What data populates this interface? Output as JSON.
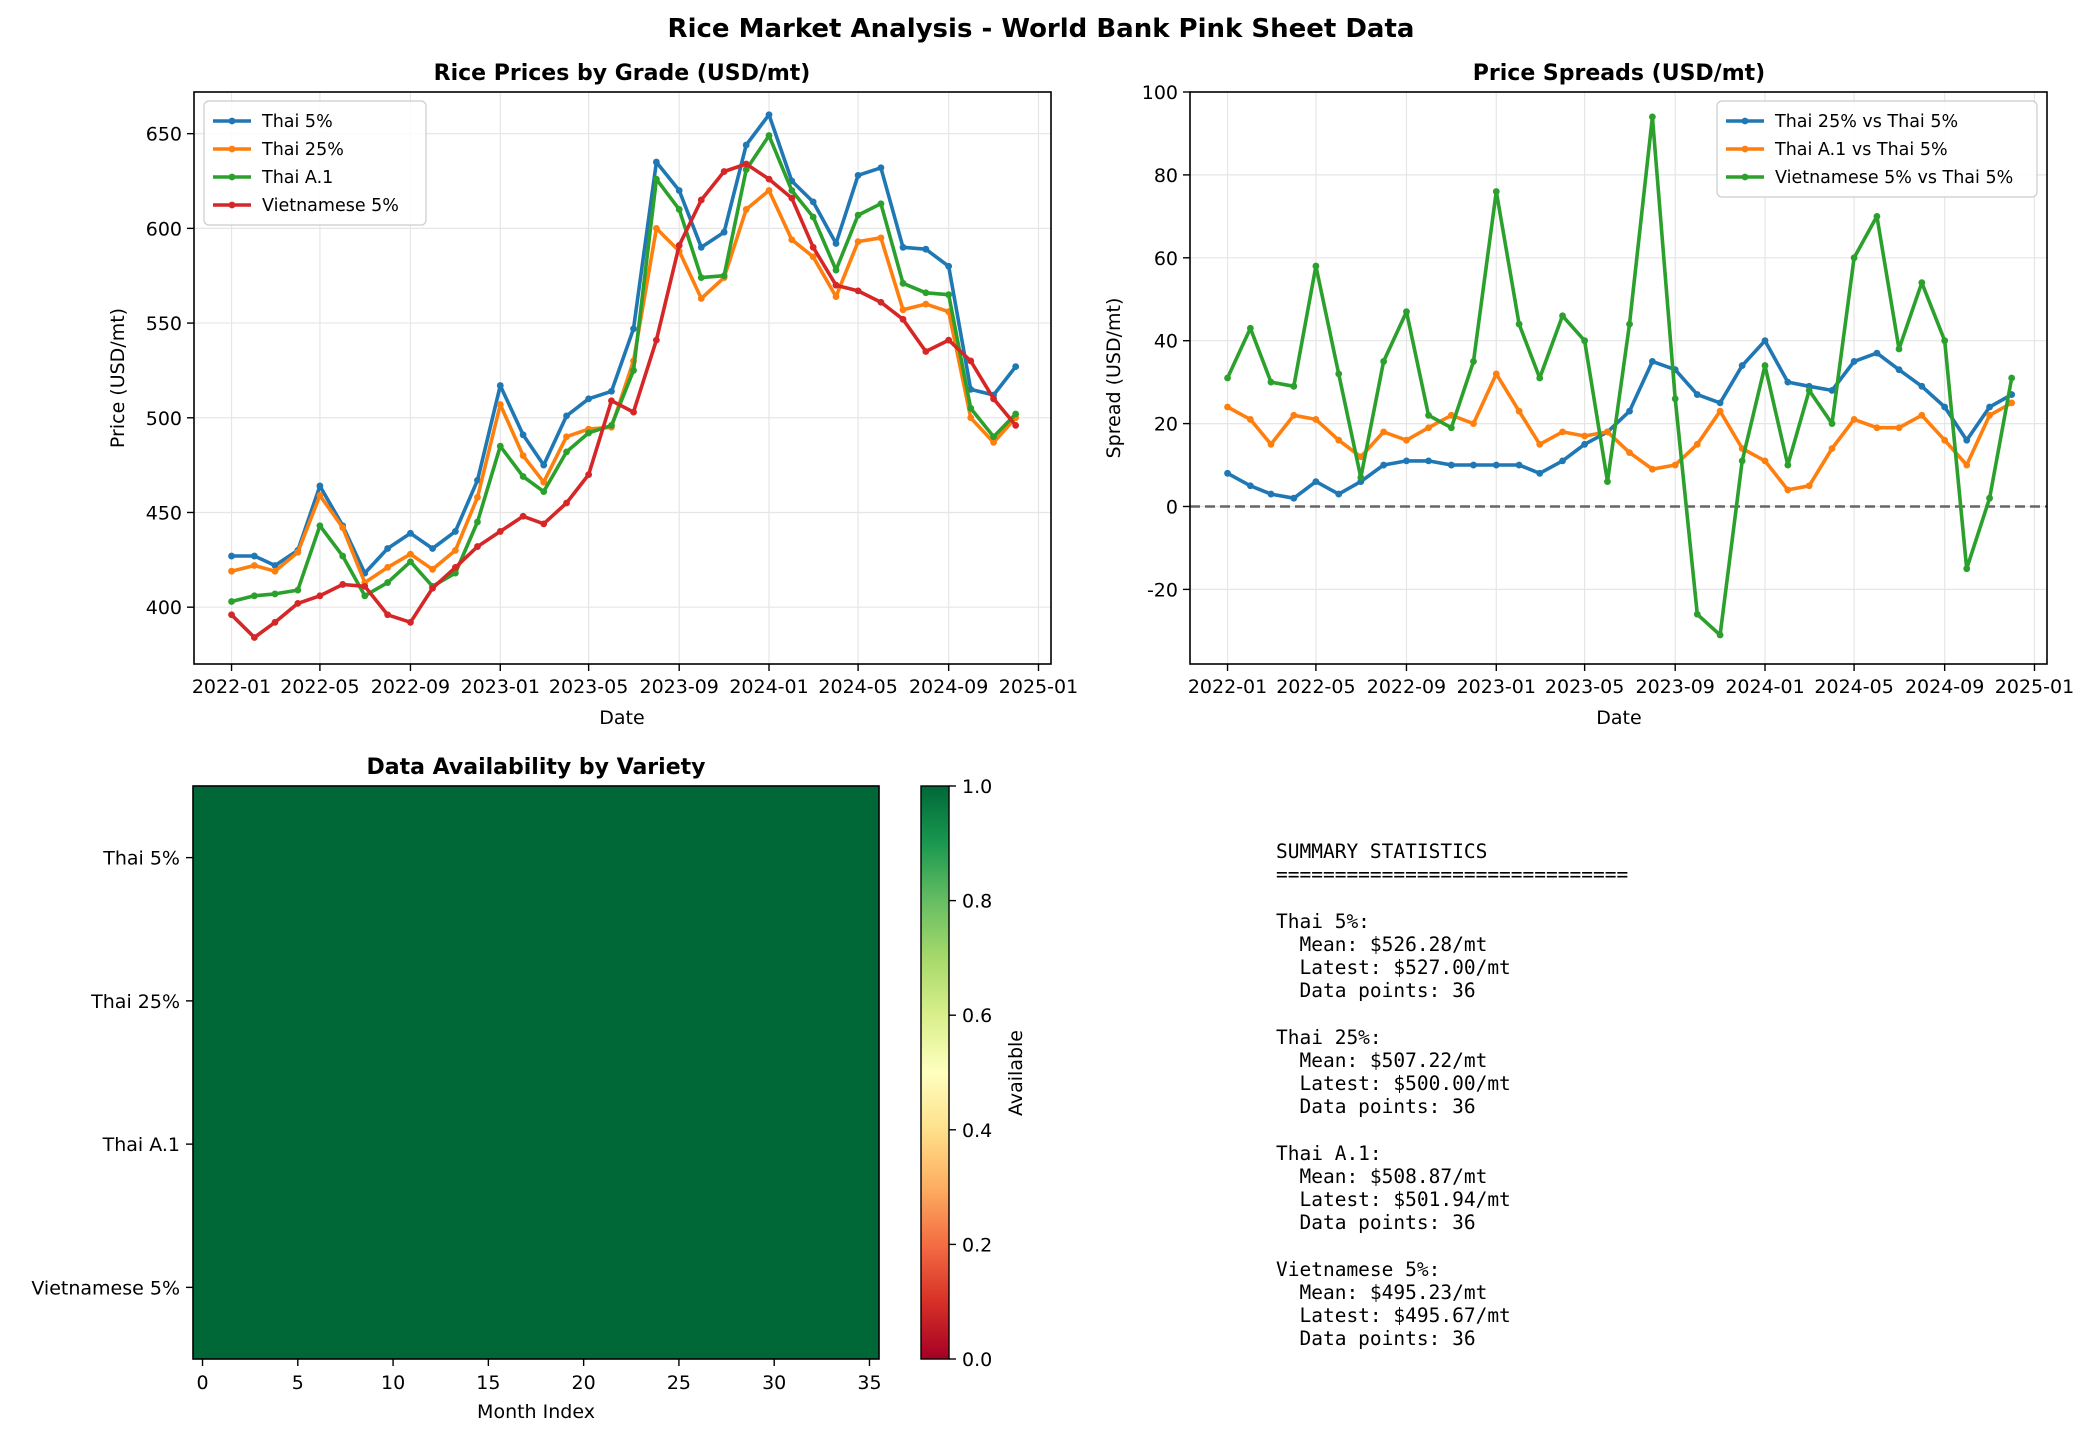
{
  "suptitle": "Rice Market Analysis - World Bank Pink Sheet Data",
  "colors": {
    "blue": "#1f77b4",
    "orange": "#ff7f0e",
    "green": "#2ca02c",
    "red": "#d62728",
    "grid": "#e6e6e6",
    "zero_line": "#666666",
    "heatmap_fill": "#006837"
  },
  "chart_data": [
    {
      "type": "line",
      "title": "Rice Prices by Grade (USD/mt)",
      "xlabel": "Date",
      "ylabel": "Price (USD/mt)",
      "grid": true,
      "legend_position": "top-left",
      "xlim": [
        "2021-11-11",
        "2025-01-18"
      ],
      "ylim": [
        370,
        672
      ],
      "x_ticks": [
        "2022-01",
        "2022-05",
        "2022-09",
        "2023-01",
        "2023-05",
        "2023-09",
        "2024-01",
        "2024-05",
        "2024-09",
        "2025-01"
      ],
      "y_ticks": [
        400,
        450,
        500,
        550,
        600,
        650
      ],
      "x": [
        "2022-01-01",
        "2022-02-01",
        "2022-03-01",
        "2022-04-01",
        "2022-05-01",
        "2022-06-01",
        "2022-07-01",
        "2022-08-01",
        "2022-09-01",
        "2022-10-01",
        "2022-11-01",
        "2022-12-01",
        "2023-01-01",
        "2023-02-01",
        "2023-03-01",
        "2023-04-01",
        "2023-05-01",
        "2023-06-01",
        "2023-07-01",
        "2023-08-01",
        "2023-09-01",
        "2023-10-01",
        "2023-11-01",
        "2023-12-01",
        "2024-01-01",
        "2024-02-01",
        "2024-03-01",
        "2024-04-01",
        "2024-05-01",
        "2024-06-01",
        "2024-07-01",
        "2024-08-01",
        "2024-09-01",
        "2024-10-01",
        "2024-11-01",
        "2024-12-01"
      ],
      "series": [
        {
          "name": "Thai 5%",
          "color": "blue",
          "values": [
            427,
            427,
            422,
            430,
            464,
            443,
            418,
            431,
            439,
            431,
            440,
            467,
            517,
            491,
            475,
            501,
            510,
            514,
            547,
            635,
            620,
            590,
            598,
            644,
            660,
            625,
            614,
            592,
            628,
            632,
            590,
            589,
            580,
            515,
            512,
            527
          ]
        },
        {
          "name": "Thai 25%",
          "color": "orange",
          "values": [
            419,
            422,
            419,
            429,
            459,
            442,
            413,
            421,
            428,
            420,
            430,
            458,
            507,
            480,
            466,
            490,
            494,
            495,
            530,
            600,
            588,
            563,
            574,
            610,
            620,
            594,
            585,
            564,
            593,
            595,
            557,
            560,
            556,
            500,
            487,
            500
          ]
        },
        {
          "name": "Thai A.1",
          "color": "green",
          "values": [
            403,
            406,
            407,
            409,
            443,
            427,
            406,
            413,
            424,
            411,
            418,
            445,
            485,
            469,
            461,
            482,
            492,
            496,
            525,
            626,
            610,
            574,
            575,
            631,
            649,
            620,
            606,
            578,
            607,
            613,
            571,
            566,
            565,
            505,
            490,
            502
          ]
        },
        {
          "name": "Vietnamese 5%",
          "color": "red",
          "values": [
            396,
            384,
            392,
            402,
            406,
            412,
            411,
            396,
            392,
            410,
            421,
            432,
            440,
            448,
            444,
            455,
            470,
            509,
            503,
            541,
            591,
            615,
            630,
            634,
            626,
            616,
            590,
            570,
            567,
            561,
            552,
            535,
            541,
            530,
            510,
            496
          ]
        }
      ]
    },
    {
      "type": "line",
      "title": "Price Spreads (USD/mt)",
      "xlabel": "Date",
      "ylabel": "Spread (USD/mt)",
      "grid": true,
      "legend_position": "top-right",
      "xlim": [
        "2021-11-11",
        "2025-01-18"
      ],
      "ylim": [
        -38,
        100
      ],
      "x_ticks": [
        "2022-01",
        "2022-05",
        "2022-09",
        "2023-01",
        "2023-05",
        "2023-09",
        "2024-01",
        "2024-05",
        "2024-09",
        "2025-01"
      ],
      "y_ticks": [
        -20,
        0,
        20,
        40,
        60,
        80,
        100
      ],
      "reference_line_y": 0,
      "x": [
        "2022-01-01",
        "2022-02-01",
        "2022-03-01",
        "2022-04-01",
        "2022-05-01",
        "2022-06-01",
        "2022-07-01",
        "2022-08-01",
        "2022-09-01",
        "2022-10-01",
        "2022-11-01",
        "2022-12-01",
        "2023-01-01",
        "2023-02-01",
        "2023-03-01",
        "2023-04-01",
        "2023-05-01",
        "2023-06-01",
        "2023-07-01",
        "2023-08-01",
        "2023-09-01",
        "2023-10-01",
        "2023-11-01",
        "2023-12-01",
        "2024-01-01",
        "2024-02-01",
        "2024-03-01",
        "2024-04-01",
        "2024-05-01",
        "2024-06-01",
        "2024-07-01",
        "2024-08-01",
        "2024-09-01",
        "2024-10-01",
        "2024-11-01",
        "2024-12-01"
      ],
      "series": [
        {
          "name": "Thai 25% vs Thai 5%",
          "color": "blue",
          "values": [
            8,
            5,
            3,
            2,
            6,
            3,
            6,
            10,
            11,
            11,
            10,
            10,
            10,
            10,
            8,
            11,
            15,
            18,
            23,
            35,
            33,
            27,
            25,
            34,
            40,
            30,
            29,
            28,
            35,
            37,
            33,
            29,
            24,
            16,
            24,
            27
          ]
        },
        {
          "name": "Thai A.1 vs Thai 5%",
          "color": "orange",
          "values": [
            24,
            21,
            15,
            22,
            21,
            16,
            12,
            18,
            16,
            19,
            22,
            20,
            32,
            23,
            15,
            18,
            17,
            18,
            13,
            9,
            10,
            15,
            23,
            14,
            11,
            4,
            5,
            14,
            21,
            19,
            19,
            22,
            16,
            10,
            22,
            25
          ]
        },
        {
          "name": "Vietnamese 5% vs Thai 5%",
          "color": "green",
          "values": [
            31,
            43,
            30,
            29,
            58,
            32,
            7,
            35,
            47,
            22,
            19,
            35,
            76,
            44,
            31,
            46,
            40,
            6,
            44,
            94,
            26,
            -26,
            -31,
            11,
            34,
            10,
            28,
            20,
            60,
            70,
            38,
            54,
            40,
            -15,
            2,
            31
          ]
        }
      ]
    },
    {
      "type": "heatmap",
      "title": "Data Availability by Variety",
      "xlabel": "Month Index",
      "ylabel": "",
      "rows": [
        "Thai 5%",
        "Thai 25%",
        "Thai A.1",
        "Vietnamese 5%"
      ],
      "columns": 36,
      "x_ticks": [
        0,
        5,
        10,
        15,
        20,
        25,
        30,
        35
      ],
      "values_all": 1.0,
      "colorbar": {
        "label": "Available",
        "range": [
          0.0,
          1.0
        ],
        "ticks": [
          "0.0",
          "0.2",
          "0.4",
          "0.6",
          "0.8",
          "1.0"
        ]
      }
    }
  ],
  "summary": {
    "text": "SUMMARY STATISTICS\n==============================\n\nThai 5%:\n  Mean: $526.28/mt\n  Latest: $527.00/mt\n  Data points: 36\n\nThai 25%:\n  Mean: $507.22/mt\n  Latest: $500.00/mt\n  Data points: 36\n\nThai A.1:\n  Mean: $508.87/mt\n  Latest: $501.94/mt\n  Data points: 36\n\nVietnamese 5%:\n  Mean: $495.23/mt\n  Latest: $495.67/mt\n  Data points: 36"
  }
}
